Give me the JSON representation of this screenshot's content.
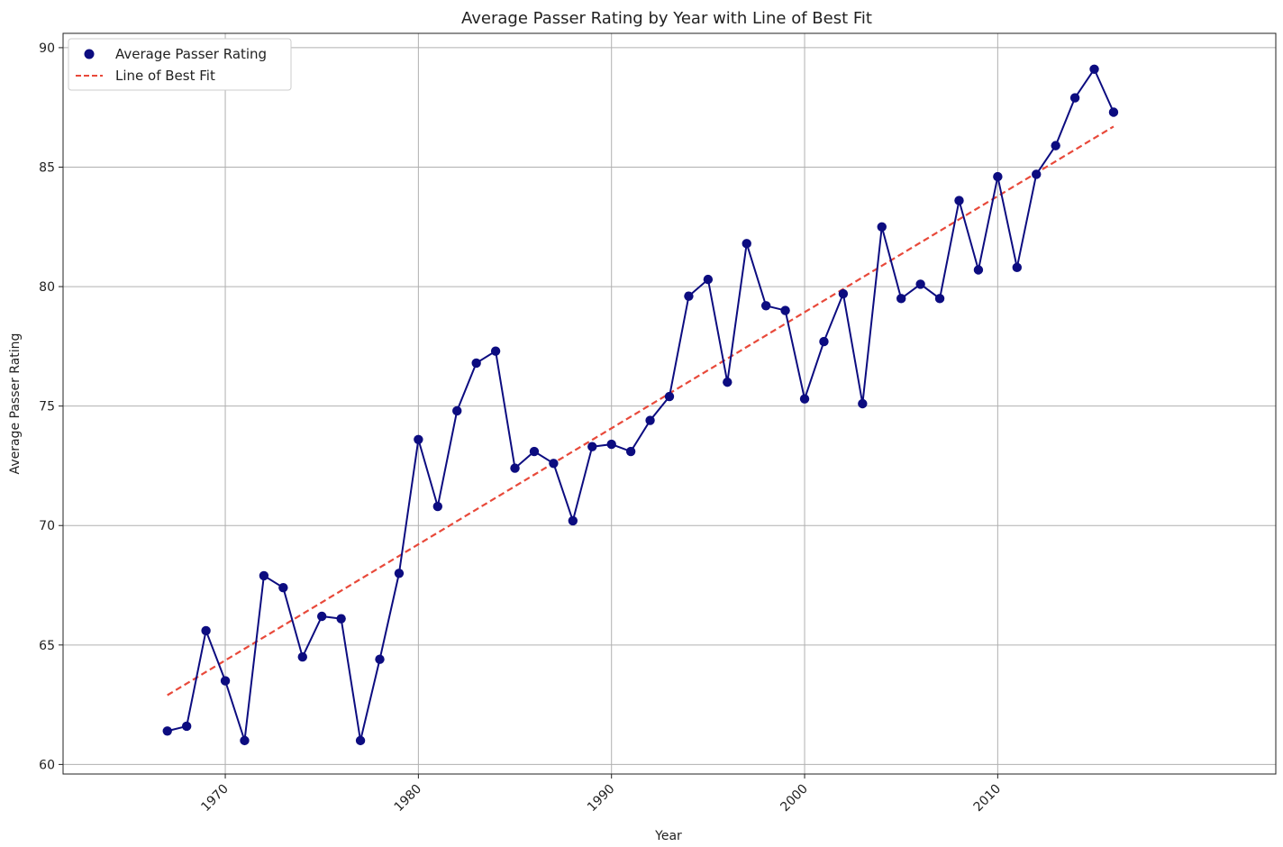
{
  "chart_data": {
    "type": "line",
    "title": "Average Passer Rating by Year with Line of Best Fit",
    "xlabel": "Year",
    "ylabel": "Average Passer Rating",
    "xlim": [
      1961.6,
      2024.4
    ],
    "ylim": [
      59.6,
      90.6
    ],
    "xticks": [
      1970,
      1980,
      1990,
      2000,
      2010
    ],
    "yticks": [
      60,
      65,
      70,
      75,
      80,
      85,
      90
    ],
    "grid": true,
    "legend_position": "upper-left",
    "colors": {
      "data": "#0c0c80",
      "fit": "#e8493a",
      "grid": "#b0b0b0"
    },
    "series": [
      {
        "name": "Average Passer Rating",
        "style": "line-markers",
        "x": [
          1967,
          1968,
          1969,
          1970,
          1971,
          1972,
          1973,
          1974,
          1975,
          1976,
          1977,
          1978,
          1979,
          1980,
          1981,
          1982,
          1983,
          1984,
          1985,
          1986,
          1987,
          1988,
          1989,
          1990,
          1991,
          1992,
          1993,
          1994,
          1995,
          1996,
          1997,
          1998,
          1999,
          2000,
          2001,
          2002,
          2003,
          2004,
          2005,
          2006,
          2007,
          2008,
          2009,
          2010,
          2011,
          2012,
          2013,
          2014,
          2015,
          2016
        ],
        "values": [
          61.4,
          61.6,
          65.6,
          63.5,
          61.0,
          67.9,
          67.4,
          64.5,
          66.2,
          66.1,
          61.0,
          64.4,
          68.0,
          73.6,
          70.8,
          74.8,
          76.8,
          77.3,
          72.4,
          73.1,
          72.6,
          70.2,
          73.3,
          73.4,
          73.1,
          74.4,
          75.4,
          79.6,
          80.3,
          76.0,
          81.8,
          79.2,
          79.0,
          75.3,
          77.7,
          79.7,
          75.1,
          82.5,
          79.5,
          80.1,
          79.5,
          83.6,
          80.7,
          84.6,
          80.8,
          84.7,
          85.9,
          87.9,
          89.1,
          87.3
        ]
      },
      {
        "name": "Line of Best Fit",
        "style": "dashed",
        "x": [
          1967,
          2016
        ],
        "values": [
          62.9,
          86.7
        ]
      }
    ]
  }
}
